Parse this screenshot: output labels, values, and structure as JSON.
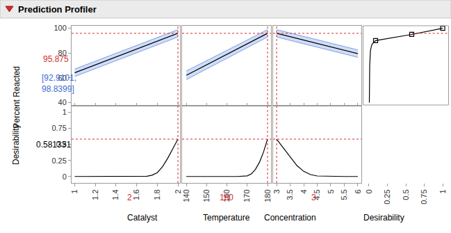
{
  "chart_data": {
    "type": "line",
    "title": "Prediction Profiler",
    "grid": false,
    "rows": [
      {
        "y_label": "Percent Reacted",
        "ylim": [
          38,
          102
        ],
        "yticks": [
          40,
          60,
          80,
          100
        ],
        "readout": 95.875,
        "interval_label": "[92.9101, 98.8399]"
      },
      {
        "y_label": "Desirability",
        "ylim": [
          -0.1,
          1.09
        ],
        "yticks": [
          0,
          0.25,
          0.5,
          0.75,
          1
        ],
        "readout": 0.581331
      }
    ],
    "factors": [
      {
        "x_label": "Catalyst",
        "xlim": [
          0.97,
          2.02
        ],
        "xticks": [
          1,
          1.2,
          1.4,
          1.6,
          1.8,
          2
        ],
        "current": 2,
        "prediction": {
          "x": [
            1,
            2
          ],
          "series": [
            {
              "color": "#7b9fe8",
              "values": [
                61,
                92.9101
              ]
            },
            {
              "color": "#7b9fe8",
              "values": [
                67,
                98.8399
              ]
            },
            {
              "color": "#000000",
              "values": [
                64,
                95.875
              ]
            }
          ]
        },
        "desirability": {
          "color": "#000000",
          "x": [
            1,
            1.2,
            1.4,
            1.6,
            1.7,
            1.75,
            1.8,
            1.85,
            1.9,
            1.95,
            2
          ],
          "values": [
            0,
            0,
            0,
            0,
            0.005,
            0.02,
            0.06,
            0.15,
            0.28,
            0.43,
            0.581331
          ]
        }
      },
      {
        "x_label": "Temperature",
        "xlim": [
          137.9,
          181.7
        ],
        "xticks": [
          140,
          150,
          160,
          170,
          180
        ],
        "current": 180,
        "prediction": {
          "x": [
            140,
            180
          ],
          "series": [
            {
              "color": "#7b9fe8",
              "values": [
                58.5,
                92.9101
              ]
            },
            {
              "color": "#7b9fe8",
              "values": [
                65.5,
                98.8399
              ]
            },
            {
              "color": "#000000",
              "values": [
                62,
                95.875
              ]
            }
          ]
        },
        "desirability": {
          "color": "#000000",
          "x": [
            140,
            150,
            160,
            165,
            170,
            172,
            174,
            176,
            178,
            180
          ],
          "values": [
            0,
            0,
            0,
            0,
            0.01,
            0.04,
            0.11,
            0.22,
            0.38,
            0.581331
          ]
        }
      },
      {
        "x_label": "Concentration",
        "xlim": [
          2.87,
          6.13
        ],
        "xticks": [
          3,
          3.5,
          4,
          4.5,
          5,
          5.5,
          6
        ],
        "current": 3,
        "prediction": {
          "x": [
            3,
            6
          ],
          "series": [
            {
              "color": "#7b9fe8",
              "values": [
                92.9101,
                76.5
              ]
            },
            {
              "color": "#7b9fe8",
              "values": [
                98.8399,
                82.5
              ]
            },
            {
              "color": "#000000",
              "values": [
                95.875,
                79.5
              ]
            }
          ]
        },
        "desirability": {
          "color": "#000000",
          "x": [
            3,
            3.25,
            3.5,
            3.75,
            4,
            4.25,
            4.5,
            5,
            5.5,
            6
          ],
          "values": [
            0.581331,
            0.44,
            0.3,
            0.17,
            0.08,
            0.03,
            0.008,
            0,
            0,
            0
          ]
        }
      }
    ],
    "desirability_function": {
      "x_label": "Desirability",
      "xlim": [
        -0.075,
        1.075
      ],
      "xticks": [
        0,
        0.25,
        0.5,
        0.75,
        1
      ],
      "curve": {
        "color": "#000000",
        "x": [
          0.005,
          0.01,
          0.02,
          0.04,
          0.09,
          0.58,
          1
        ],
        "values": [
          40,
          70,
          82,
          87,
          90,
          95,
          100
        ]
      },
      "points": {
        "color": "#000000",
        "marker": "square",
        "x": [
          0.09,
          0.58,
          1
        ],
        "values": [
          90,
          95,
          100
        ]
      }
    }
  }
}
